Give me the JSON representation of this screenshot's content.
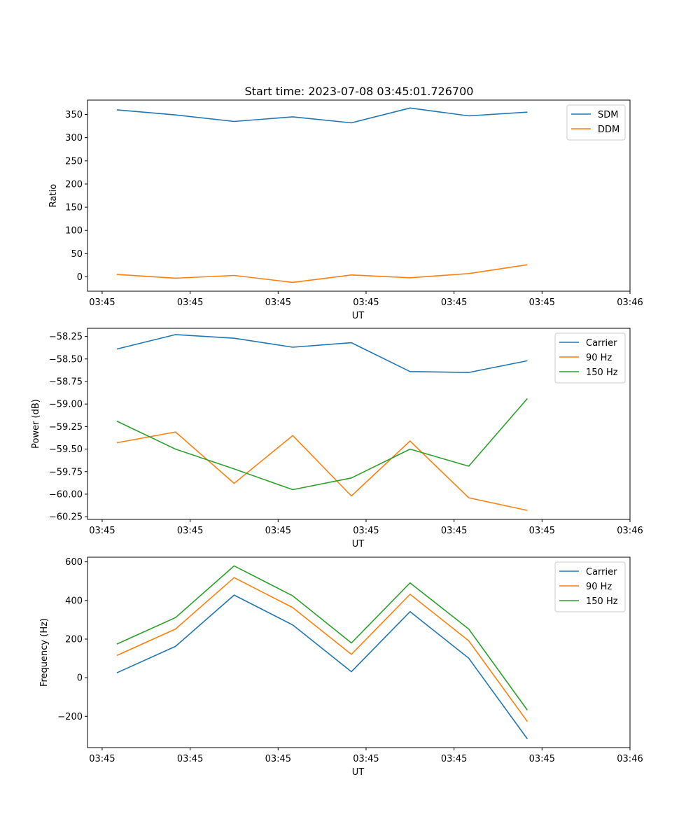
{
  "figure": {
    "title": "Start time: 2023-07-08 03:45:01.726700"
  },
  "chart_data": [
    {
      "type": "line",
      "ylabel": "Ratio",
      "xlabel": "UT",
      "ylim": [
        -31,
        381
      ],
      "xlim": [
        -0.5,
        8.75
      ],
      "x": [
        0,
        1,
        2,
        3,
        4,
        5,
        6,
        7
      ],
      "x_ticks": [
        -0.25,
        1.25,
        2.75,
        4.25,
        5.75,
        7.25,
        8.75
      ],
      "x_tick_labels": [
        "03:45",
        "03:45",
        "03:45",
        "03:45",
        "03:45",
        "03:45",
        "03:46"
      ],
      "y_ticks": [
        0,
        50,
        100,
        150,
        200,
        250,
        300,
        350
      ],
      "y_tick_labels": [
        "0",
        "50",
        "100",
        "150",
        "200",
        "250",
        "300",
        "350"
      ],
      "legend_position": "top-right",
      "series": [
        {
          "name": "SDM",
          "color": "#1f77b4",
          "values": [
            360,
            349,
            335,
            345,
            332,
            364,
            347,
            355
          ]
        },
        {
          "name": "DDM",
          "color": "#ff7f0e",
          "values": [
            5,
            -3,
            3,
            -12,
            4,
            -2,
            7,
            26
          ]
        }
      ]
    },
    {
      "type": "line",
      "ylabel": "Power (dB)",
      "xlabel": "UT",
      "ylim": [
        -60.28,
        -58.16
      ],
      "xlim": [
        -0.5,
        8.75
      ],
      "x": [
        0,
        1,
        2,
        3,
        4,
        5,
        6,
        7
      ],
      "x_ticks": [
        -0.25,
        1.25,
        2.75,
        4.25,
        5.75,
        7.25,
        8.75
      ],
      "x_tick_labels": [
        "03:45",
        "03:45",
        "03:45",
        "03:45",
        "03:45",
        "03:45",
        "03:46"
      ],
      "y_ticks": [
        -58.25,
        -58.5,
        -58.75,
        -59.0,
        -59.25,
        -59.5,
        -59.75,
        -60.0,
        -60.25
      ],
      "y_tick_labels": [
        "−58.25",
        "−58.50",
        "−58.75",
        "−59.00",
        "−59.25",
        "−59.50",
        "−59.75",
        "−60.00",
        "−60.25"
      ],
      "legend_position": "top-right",
      "series": [
        {
          "name": "Carrier",
          "color": "#1f77b4",
          "values": [
            -58.39,
            -58.23,
            -58.27,
            -58.37,
            -58.32,
            -58.64,
            -58.65,
            -58.52
          ]
        },
        {
          "name": "90 Hz",
          "color": "#ff7f0e",
          "values": [
            -59.43,
            -59.31,
            -59.88,
            -59.35,
            -60.02,
            -59.41,
            -60.04,
            -60.18
          ]
        },
        {
          "name": "150 Hz",
          "color": "#2ca02c",
          "values": [
            -59.19,
            -59.5,
            -59.72,
            -59.95,
            -59.82,
            -59.5,
            -59.69,
            -58.94
          ]
        }
      ]
    },
    {
      "type": "line",
      "ylabel": "Frequency (Hz)",
      "xlabel": "UT",
      "ylim": [
        -362,
        624
      ],
      "xlim": [
        -0.5,
        8.75
      ],
      "x": [
        0,
        1,
        2,
        3,
        4,
        5,
        6,
        7
      ],
      "x_ticks": [
        -0.25,
        1.25,
        2.75,
        4.25,
        5.75,
        7.25,
        8.75
      ],
      "x_tick_labels": [
        "03:45",
        "03:45",
        "03:45",
        "03:45",
        "03:45",
        "03:45",
        "03:46"
      ],
      "y_ticks": [
        -200,
        0,
        200,
        400,
        600
      ],
      "y_tick_labels": [
        "−200",
        "0",
        "200",
        "400",
        "600"
      ],
      "legend_position": "top-right",
      "series": [
        {
          "name": "Carrier",
          "color": "#1f77b4",
          "values": [
            25,
            162,
            428,
            273,
            31,
            342,
            101,
            -317
          ]
        },
        {
          "name": "90 Hz",
          "color": "#ff7f0e",
          "values": [
            115,
            252,
            518,
            363,
            121,
            432,
            191,
            -227
          ]
        },
        {
          "name": "150 Hz",
          "color": "#2ca02c",
          "values": [
            174,
            311,
            579,
            424,
            180,
            491,
            252,
            -168
          ]
        }
      ]
    }
  ]
}
